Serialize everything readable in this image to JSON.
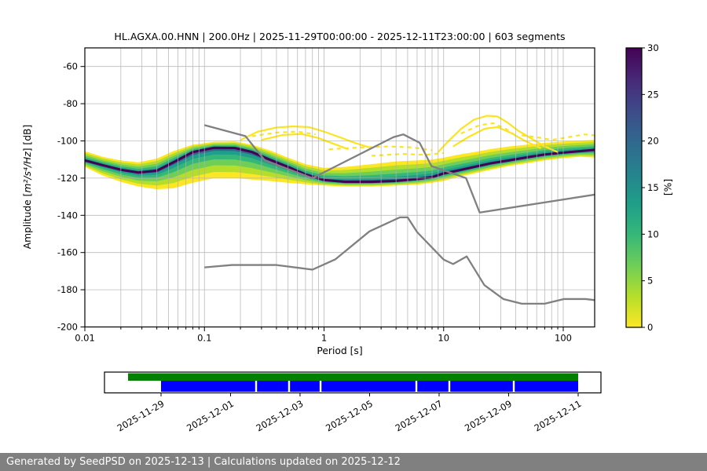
{
  "chart_data": {
    "type": "heatmap",
    "title": "HL.AGXA.00.HNN | 200.0Hz | 2025-11-29T00:00:00 - 2025-12-11T23:00:00 | 603 segments",
    "xlabel": "Period [s]",
    "ylabel": "Amplitude [m²/s⁴/Hz] [dB]",
    "ylabel_parts": [
      "Amplitude [",
      "m²/s⁴/Hz",
      "] [dB]"
    ],
    "xscale": "log",
    "xlim": [
      0.01,
      184
    ],
    "ylim": [
      -200,
      -50
    ],
    "xticks": [
      0.01,
      0.1,
      1,
      10,
      100
    ],
    "xtick_labels": [
      "0.01",
      "0.1",
      "1",
      "10",
      "100"
    ],
    "yticks": [
      -60,
      -80,
      -100,
      -120,
      -140,
      -160,
      -180,
      -200
    ],
    "grid": true,
    "grid_color": "#b0b0b0",
    "colorbar": {
      "label": "[%]",
      "min": 0,
      "max": 30,
      "ticks": [
        0,
        5,
        10,
        15,
        20,
        25,
        30
      ],
      "colors_bottom_to_top": [
        "#fde725",
        "#b5de2b",
        "#6ece58",
        "#35b779",
        "#1f9e89",
        "#26828e",
        "#31688e",
        "#3e4a89",
        "#482878",
        "#440154"
      ]
    },
    "ppsd_band": {
      "comment": "PPSD probability band: mode = highest-probability dB per period, top/bottom = outer (low probability) envelope",
      "periods": [
        0.01,
        0.014,
        0.02,
        0.028,
        0.04,
        0.055,
        0.08,
        0.12,
        0.18,
        0.25,
        0.35,
        0.5,
        0.7,
        1.0,
        1.5,
        2.5,
        4,
        6,
        8,
        10,
        13,
        18,
        25,
        35,
        50,
        70,
        100,
        140,
        184
      ],
      "top": [
        -105.5,
        -108.5,
        -110.5,
        -111.5,
        -109.5,
        -105.5,
        -102,
        -100.5,
        -100.3,
        -102,
        -105,
        -109,
        -112.5,
        -114.5,
        -114,
        -112.5,
        -111,
        -110.5,
        -110,
        -109,
        -107.5,
        -106,
        -104.3,
        -103,
        -102,
        -101,
        -100.3,
        -99.8,
        -99.5
      ],
      "mode": [
        -110.5,
        -113,
        -115.5,
        -117,
        -116,
        -111.5,
        -106,
        -103.7,
        -103.8,
        -106,
        -110,
        -114,
        -118,
        -121,
        -122,
        -122,
        -121.5,
        -120.5,
        -119.5,
        -117.5,
        -116,
        -114,
        -112,
        -110.5,
        -108.8,
        -107.3,
        -106.3,
        -105.5,
        -104.8
      ],
      "bottom": [
        -114,
        -118.5,
        -122,
        -124.5,
        -126,
        -125.5,
        -122.5,
        -120,
        -120,
        -120.8,
        -121.5,
        -122.5,
        -123.3,
        -124,
        -124.5,
        -124.5,
        -124,
        -123.5,
        -122.5,
        -121.5,
        -119.5,
        -117.5,
        -115.5,
        -113.5,
        -112,
        -110.5,
        -109.3,
        -108.5,
        -109
      ],
      "band_colors_outer_to_inner": [
        "#fde725",
        "#b5de2b",
        "#6ece58",
        "#35b779",
        "#1f9e89",
        "#31688e"
      ],
      "band_fractions": [
        1.0,
        0.8,
        0.58,
        0.38,
        0.22,
        0.1
      ],
      "mode_color": "#440154"
    },
    "outlier_curves": [
      {
        "dashed": false,
        "points": [
          [
            0.2,
            -99.5
          ],
          [
            0.28,
            -95
          ],
          [
            0.4,
            -92.8
          ],
          [
            0.55,
            -92.2
          ],
          [
            0.75,
            -92.6
          ],
          [
            1.0,
            -95
          ],
          [
            1.35,
            -98
          ],
          [
            1.8,
            -101
          ],
          [
            2.4,
            -103.5
          ]
        ]
      },
      {
        "dashed": false,
        "points": [
          [
            0.3,
            -99.5
          ],
          [
            0.45,
            -96.8
          ],
          [
            0.65,
            -96.3
          ],
          [
            0.9,
            -98.5
          ],
          [
            1.2,
            -101.5
          ],
          [
            1.6,
            -104.5
          ]
        ]
      },
      {
        "dashed": true,
        "points": [
          [
            0.25,
            -97.5
          ],
          [
            0.4,
            -95.5
          ],
          [
            0.6,
            -95
          ],
          [
            0.85,
            -96.5
          ]
        ]
      },
      {
        "dashed": false,
        "points": [
          [
            9,
            -106
          ],
          [
            11,
            -100
          ],
          [
            14,
            -93.5
          ],
          [
            18,
            -88.5
          ],
          [
            23,
            -86.5
          ],
          [
            28,
            -86.8
          ],
          [
            34,
            -90
          ],
          [
            42,
            -94.5
          ],
          [
            55,
            -99
          ],
          [
            70,
            -103
          ],
          [
            90,
            -106
          ]
        ]
      },
      {
        "dashed": false,
        "points": [
          [
            12,
            -103
          ],
          [
            16,
            -98
          ],
          [
            22,
            -93.5
          ],
          [
            28,
            -92.5
          ],
          [
            36,
            -95.5
          ],
          [
            48,
            -100
          ],
          [
            65,
            -104
          ]
        ]
      },
      {
        "dashed": true,
        "points": [
          [
            14,
            -96
          ],
          [
            20,
            -91.5
          ],
          [
            26,
            -90.5
          ],
          [
            33,
            -93.5
          ],
          [
            42,
            -98
          ]
        ]
      },
      {
        "dashed": true,
        "points": [
          [
            45,
            -97
          ],
          [
            60,
            -98
          ],
          [
            80,
            -99.5
          ],
          [
            110,
            -98
          ],
          [
            150,
            -96.5
          ],
          [
            184,
            -97
          ]
        ]
      },
      {
        "dashed": true,
        "points": [
          [
            1.1,
            -104.5
          ],
          [
            2,
            -103.5
          ],
          [
            3.5,
            -103
          ],
          [
            5.5,
            -103.5
          ],
          [
            8,
            -105
          ]
        ]
      },
      {
        "dashed": true,
        "points": [
          [
            2.5,
            -108
          ],
          [
            4.5,
            -107
          ],
          [
            7,
            -107.5
          ],
          [
            10,
            -106.5
          ]
        ]
      }
    ],
    "noise_models": {
      "color": "#808080",
      "nhnm": [
        [
          0.1,
          -91.5
        ],
        [
          0.22,
          -97.4
        ],
        [
          0.32,
          -110.5
        ],
        [
          0.8,
          -120.0
        ],
        [
          3.8,
          -98.0
        ],
        [
          4.6,
          -96.5
        ],
        [
          6.3,
          -101.0
        ],
        [
          7.9,
          -113.5
        ],
        [
          15.4,
          -120.0
        ],
        [
          20.0,
          -138.5
        ],
        [
          354.8,
          -126.0
        ]
      ],
      "nlnm": [
        [
          0.1,
          -168.0
        ],
        [
          0.17,
          -166.7
        ],
        [
          0.4,
          -166.7
        ],
        [
          0.8,
          -169.2
        ],
        [
          1.24,
          -163.7
        ],
        [
          2.4,
          -148.6
        ],
        [
          4.3,
          -141.1
        ],
        [
          5.0,
          -141.1
        ],
        [
          6.0,
          -149.0
        ],
        [
          10.0,
          -163.8
        ],
        [
          12.0,
          -166.2
        ],
        [
          15.6,
          -162.1
        ],
        [
          21.9,
          -177.5
        ],
        [
          31.6,
          -185.0
        ],
        [
          45.0,
          -187.5
        ],
        [
          70.0,
          -187.5
        ],
        [
          101.0,
          -185.0
        ],
        [
          154.0,
          -185.0
        ],
        [
          328.0,
          -187.5
        ]
      ]
    }
  },
  "timeline": {
    "tick_labels": [
      "2025-11-29",
      "2025-12-01",
      "2025-12-03",
      "2025-12-05",
      "2025-12-07",
      "2025-12-09",
      "2025-12-11"
    ],
    "tick_positions": [
      0.1139,
      0.2539,
      0.3939,
      0.534,
      0.674,
      0.814,
      0.9541
    ],
    "green": {
      "start": 0.0475,
      "end": 0.9541,
      "color": "#008000"
    },
    "blue": {
      "start": 0.1139,
      "end": 0.9541,
      "color": "#0000ff",
      "gaps": [
        0.3054,
        0.3718,
        0.4352,
        0.6282,
        0.6946,
        0.8244
      ]
    }
  },
  "footer": {
    "text": "Generated by SeedPSD on 2025-12-13 | Calculations updated on 2025-12-12",
    "bg": "#808080"
  }
}
